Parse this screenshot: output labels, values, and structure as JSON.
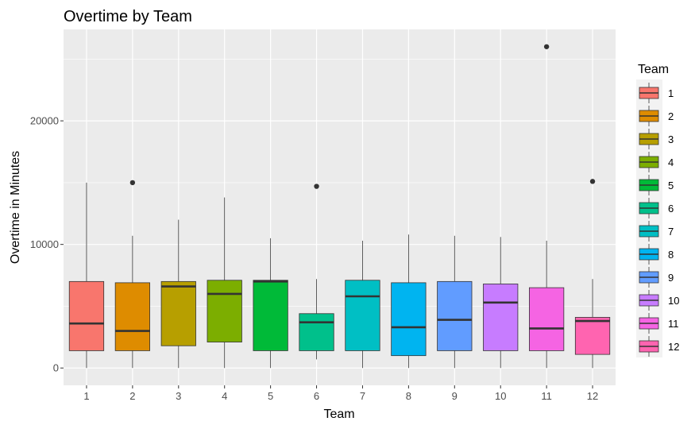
{
  "chart_data": {
    "type": "boxplot",
    "title": "Overtime by Team",
    "xlabel": "Team",
    "ylabel": "Overtime in Minutes",
    "ylim": [
      -1400,
      27400
    ],
    "yticks": [
      0,
      10000,
      20000
    ],
    "ytick_labels": [
      "0",
      "10000",
      "20000"
    ],
    "legend": {
      "title": "Team",
      "position": "right"
    },
    "categories": [
      "1",
      "2",
      "3",
      "4",
      "5",
      "6",
      "7",
      "8",
      "9",
      "10",
      "11",
      "12"
    ],
    "boxes": [
      {
        "team": "1",
        "color": "#F8766D",
        "min": 0,
        "q1": 1400,
        "median": 3600,
        "q3": 7000,
        "max": 15000,
        "outliers": []
      },
      {
        "team": "2",
        "color": "#DE8C00",
        "min": 0,
        "q1": 1400,
        "median": 3000,
        "q3": 6900,
        "max": 10700,
        "outliers": [
          15000
        ]
      },
      {
        "team": "3",
        "color": "#B79F00",
        "min": 0,
        "q1": 1800,
        "median": 6600,
        "q3": 7000,
        "max": 12000,
        "outliers": []
      },
      {
        "team": "4",
        "color": "#7CAE00",
        "min": 0,
        "q1": 2100,
        "median": 6000,
        "q3": 7100,
        "max": 13800,
        "outliers": []
      },
      {
        "team": "5",
        "color": "#00BA38",
        "min": 0,
        "q1": 1400,
        "median": 7000,
        "q3": 7100,
        "max": 10500,
        "outliers": []
      },
      {
        "team": "6",
        "color": "#00C08B",
        "min": 700,
        "q1": 1400,
        "median": 3700,
        "q3": 4400,
        "max": 7200,
        "outliers": [
          14700
        ]
      },
      {
        "team": "7",
        "color": "#00BFC4",
        "min": 0,
        "q1": 1400,
        "median": 5800,
        "q3": 7100,
        "max": 10300,
        "outliers": []
      },
      {
        "team": "8",
        "color": "#00B4F0",
        "min": 0,
        "q1": 1000,
        "median": 3300,
        "q3": 6900,
        "max": 10800,
        "outliers": []
      },
      {
        "team": "9",
        "color": "#619CFF",
        "min": 0,
        "q1": 1400,
        "median": 3900,
        "q3": 7000,
        "max": 10700,
        "outliers": []
      },
      {
        "team": "10",
        "color": "#C77CFF",
        "min": 0,
        "q1": 1400,
        "median": 5300,
        "q3": 6800,
        "max": 10600,
        "outliers": []
      },
      {
        "team": "11",
        "color": "#F564E3",
        "min": 0,
        "q1": 1400,
        "median": 3200,
        "q3": 6500,
        "max": 10300,
        "outliers": [
          26000
        ]
      },
      {
        "team": "12",
        "color": "#FF64B0",
        "min": 0,
        "q1": 1100,
        "median": 3800,
        "q3": 4100,
        "max": 7200,
        "outliers": [
          15100
        ]
      }
    ]
  }
}
